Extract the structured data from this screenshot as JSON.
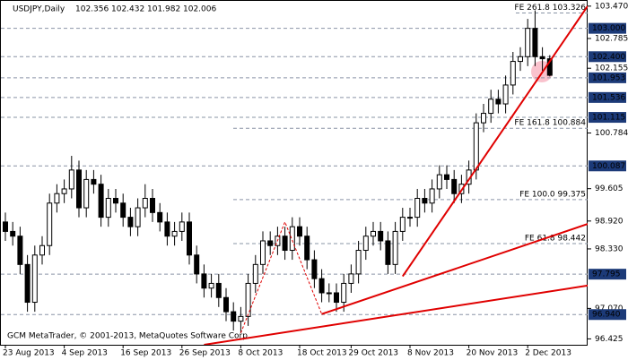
{
  "chart_data": {
    "type": "candlestick",
    "title": "USDJPY,Daily",
    "footer": "GCM MetaTrader, © 2001-2013, MetaQuotes Software Corp.",
    "categories": [
      "23 Aug 2013",
      null,
      null,
      null,
      null,
      null,
      null,
      null,
      "4 Sep 2013",
      null,
      null,
      null,
      null,
      null,
      null,
      null,
      "16 Sep 2013",
      null,
      null,
      null,
      null,
      null,
      null,
      null,
      "26 Sep 2013",
      null,
      null,
      null,
      null,
      null,
      null,
      null,
      "8 Oct 2013",
      null,
      null,
      null,
      null,
      null,
      null,
      null,
      "18 Oct 2013",
      null,
      null,
      null,
      null,
      null,
      null,
      "29 Oct 2013",
      null,
      null,
      null,
      null,
      null,
      null,
      null,
      "8 Nov 2013",
      null,
      null,
      null,
      null,
      null,
      null,
      null,
      "20 Nov 2013",
      null,
      null,
      null,
      null,
      null,
      null,
      null,
      "2 Dec 2013",
      null,
      null,
      null
    ],
    "open": [
      98.9,
      98.7,
      98.6,
      98.0,
      97.2,
      98.2,
      98.4,
      99.3,
      99.5,
      99.6,
      100.0,
      99.2,
      99.8,
      99.7,
      99.0,
      99.4,
      99.3,
      99.0,
      98.8,
      99.2,
      99.4,
      99.1,
      98.9,
      98.6,
      98.7,
      98.9,
      98.2,
      97.8,
      97.5,
      97.6,
      97.3,
      97.0,
      96.8,
      96.9,
      97.6,
      98.0,
      98.5,
      98.4,
      98.6,
      98.3,
      98.8,
      98.6,
      98.1,
      97.7,
      97.4,
      97.4,
      97.2,
      97.6,
      97.8,
      98.3,
      98.6,
      98.7,
      98.5,
      98.0,
      98.7,
      99.0,
      99.0,
      99.4,
      99.3,
      99.6,
      99.9,
      99.8,
      99.5,
      99.7,
      100.0,
      101.0,
      101.2,
      101.5,
      101.4,
      101.8,
      102.3,
      102.4,
      103.0,
      102.4,
      102.356
    ],
    "high": [
      99.1,
      98.9,
      98.8,
      98.2,
      98.4,
      98.6,
      99.5,
      99.7,
      99.8,
      100.3,
      100.2,
      100.0,
      100.0,
      99.9,
      99.6,
      99.6,
      99.5,
      99.2,
      99.4,
      99.7,
      99.6,
      99.3,
      99.1,
      98.9,
      99.1,
      99.1,
      98.4,
      98.0,
      97.8,
      97.8,
      97.5,
      97.2,
      97.1,
      97.8,
      98.2,
      98.7,
      98.7,
      98.8,
      98.8,
      99.0,
      99.0,
      98.8,
      98.3,
      97.9,
      97.6,
      97.6,
      97.8,
      98.0,
      98.5,
      98.8,
      98.9,
      98.9,
      98.7,
      98.9,
      99.2,
      99.2,
      99.6,
      99.6,
      99.8,
      100.1,
      100.1,
      100.0,
      99.9,
      100.2,
      101.2,
      101.4,
      101.7,
      101.7,
      102.0,
      102.5,
      102.6,
      103.2,
      103.38,
      102.6,
      102.432
    ],
    "low": [
      98.5,
      98.4,
      97.8,
      97.0,
      97.0,
      98.0,
      98.2,
      99.1,
      99.3,
      99.4,
      99.0,
      99.0,
      99.5,
      98.8,
      98.8,
      99.1,
      98.8,
      98.6,
      98.6,
      99.0,
      98.9,
      98.7,
      98.4,
      98.4,
      98.5,
      98.0,
      97.6,
      97.3,
      97.3,
      97.1,
      96.8,
      96.6,
      96.55,
      96.7,
      97.4,
      97.8,
      98.2,
      98.2,
      98.1,
      98.1,
      98.4,
      97.9,
      97.5,
      97.2,
      97.2,
      97.0,
      97.0,
      97.4,
      97.6,
      98.1,
      98.4,
      98.3,
      97.8,
      97.8,
      98.5,
      98.8,
      98.8,
      99.1,
      99.1,
      99.4,
      99.6,
      99.3,
      99.3,
      99.5,
      99.8,
      100.8,
      101.0,
      101.2,
      101.2,
      101.6,
      102.1,
      102.2,
      102.2,
      102.1,
      101.982
    ],
    "close": [
      98.7,
      98.6,
      98.0,
      97.2,
      98.2,
      98.4,
      99.3,
      99.5,
      99.6,
      100.0,
      99.2,
      99.8,
      99.7,
      99.0,
      99.4,
      99.3,
      99.0,
      98.8,
      99.2,
      99.4,
      99.1,
      98.9,
      98.6,
      98.7,
      98.9,
      98.2,
      97.8,
      97.5,
      97.6,
      97.3,
      97.0,
      96.8,
      96.9,
      97.6,
      98.0,
      98.5,
      98.4,
      98.6,
      98.3,
      98.8,
      98.6,
      98.1,
      97.7,
      97.4,
      97.4,
      97.2,
      97.6,
      97.8,
      98.3,
      98.6,
      98.7,
      98.5,
      98.0,
      98.7,
      99.0,
      99.0,
      99.4,
      99.3,
      99.6,
      99.9,
      99.8,
      99.5,
      99.7,
      100.0,
      101.0,
      101.2,
      101.5,
      101.4,
      101.8,
      102.3,
      102.4,
      103.0,
      102.4,
      102.356,
      102.006
    ],
    "ylim": [
      96.3,
      103.6
    ],
    "yticks": [
      {
        "value": 103.47,
        "label": "103.470"
      },
      102.785,
      102.155,
      100.784,
      99.605,
      {
        "value": 98.92,
        "label": "98.920"
      },
      {
        "value": 98.33,
        "label": "98.330"
      },
      {
        "value": 97.07,
        "label": "97.070"
      },
      96.425
    ],
    "price_levels": [
      {
        "value": 103,
        "label": "103.000"
      },
      {
        "value": 102.4,
        "label": "102.400"
      },
      101.953,
      101.536,
      101.115,
      100.087,
      97.795,
      {
        "value": 96.94,
        "label": "96.940"
      }
    ],
    "fibo_levels": [
      {
        "value": 103.326,
        "label": "FE 261.8 103.326"
      },
      {
        "value": 100.884,
        "label": "FE 161.8 100.884"
      },
      {
        "value": 99.375,
        "label": "FE 100.0 99.375"
      },
      {
        "value": 98.442,
        "label": "FE 61.8 98.442"
      }
    ],
    "trendlines": [
      {
        "from": [
          54,
          97.75
        ],
        "to": [
          74,
          102.3
        ]
      },
      {
        "from": [
          43,
          96.95
        ],
        "to": [
          79,
          98.85
        ]
      },
      {
        "from": [
          27,
          96.3
        ],
        "to": [
          79,
          97.55
        ]
      }
    ],
    "fibo_path": [
      [
        32,
        96.55
      ],
      [
        38,
        98.9
      ],
      [
        43,
        96.95
      ]
    ],
    "trend_color": "#e00000",
    "level_color": "#1c3a78",
    "fibo_color": "#c040c0"
  }
}
